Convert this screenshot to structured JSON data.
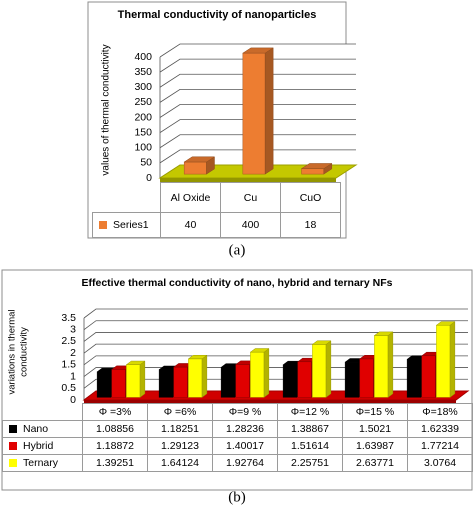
{
  "chart_data": [
    {
      "type": "bar",
      "title": "Thermal conductivity of nanoparticles",
      "caption": "(a)",
      "y_label_lines": [
        "values of thermal conductivity"
      ],
      "categories": [
        "Al Oxide",
        "Cu",
        "CuO"
      ],
      "series": [
        {
          "name": "Series1",
          "color": "#ed7d31",
          "values": [
            40,
            400,
            18
          ]
        }
      ],
      "ylim": [
        0,
        400
      ],
      "yticks": [
        0,
        50,
        100,
        150,
        200,
        250,
        300,
        350,
        400
      ],
      "grid": true,
      "floor_color": "#c4c800"
    },
    {
      "type": "bar",
      "title": "Effective thermal conductivity of nano, hybrid and ternary NFs",
      "caption": "(b)",
      "y_label_lines": [
        "variations in thermal",
        "conductivity"
      ],
      "categories": [
        "Φ =3%",
        "Φ =6%",
        "Φ=9 %",
        "Φ=12 %",
        "Φ=15 %",
        "Φ=18%"
      ],
      "series": [
        {
          "name": "Nano",
          "color": "#000000",
          "values": [
            1.08856,
            1.18251,
            1.28236,
            1.38867,
            1.5021,
            1.62339
          ]
        },
        {
          "name": "Hybrid",
          "color": "#e00000",
          "values": [
            1.18872,
            1.29123,
            1.40017,
            1.51614,
            1.63987,
            1.77214
          ]
        },
        {
          "name": "Ternary",
          "color": "#ffff00",
          "values": [
            1.39251,
            1.64124,
            1.92764,
            2.25751,
            2.63771,
            3.0764
          ]
        }
      ],
      "ylim": [
        0,
        3.5
      ],
      "yticks": [
        0,
        0.5,
        1,
        1.5,
        2,
        2.5,
        3,
        3.5
      ],
      "grid": true,
      "floor_color": "#d00000"
    }
  ]
}
